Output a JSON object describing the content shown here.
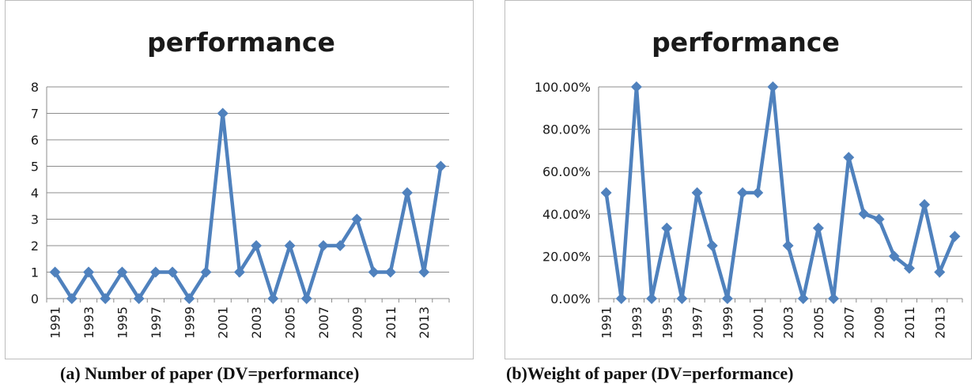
{
  "chart_data": [
    {
      "type": "line",
      "title": "performance",
      "xlabel": "",
      "ylabel": "",
      "x": [
        1991,
        1992,
        1993,
        1994,
        1995,
        1996,
        1997,
        1998,
        1999,
        2000,
        2001,
        2002,
        2003,
        2004,
        2005,
        2006,
        2007,
        2008,
        2009,
        2010,
        2011,
        2012,
        2013,
        2014
      ],
      "x_tick_labels": [
        "1991",
        "1993",
        "1995",
        "1997",
        "1999",
        "2001",
        "2003",
        "2005",
        "2007",
        "2009",
        "2011",
        "2013"
      ],
      "y_tick_labels": [
        "0",
        "1",
        "2",
        "3",
        "4",
        "5",
        "6",
        "7",
        "8"
      ],
      "ylim": [
        0,
        8
      ],
      "grid": true,
      "series": [
        {
          "values": [
            1,
            0,
            1,
            0,
            1,
            0,
            1,
            1,
            0,
            1,
            7,
            1,
            2,
            0,
            2,
            0,
            2,
            2,
            3,
            1,
            1,
            4,
            1,
            5
          ]
        }
      ],
      "caption": "(a)  Number of paper (DV=performance)"
    },
    {
      "type": "line",
      "title": "performance",
      "xlabel": "",
      "ylabel": "",
      "x": [
        1991,
        1992,
        1993,
        1994,
        1995,
        1996,
        1997,
        1998,
        1999,
        2000,
        2001,
        2002,
        2003,
        2004,
        2005,
        2006,
        2007,
        2008,
        2009,
        2010,
        2011,
        2012,
        2013,
        2014
      ],
      "x_tick_labels": [
        "1991",
        "1993",
        "1995",
        "1997",
        "1999",
        "2001",
        "2003",
        "2005",
        "2007",
        "2009",
        "2011",
        "2013"
      ],
      "y_tick_labels": [
        "0.00%",
        "20.00%",
        "40.00%",
        "60.00%",
        "80.00%",
        "100.00%"
      ],
      "ylim": [
        0,
        1
      ],
      "grid": true,
      "series": [
        {
          "values": [
            0.5,
            0,
            1,
            0,
            0.333,
            0,
            0.5,
            0.25,
            0,
            0.5,
            0.5,
            1,
            0.25,
            0,
            0.333,
            0,
            0.667,
            0.4,
            0.375,
            0.2,
            0.143,
            0.444,
            0.125,
            0.294
          ]
        }
      ],
      "caption": "(b)Weight of paper (DV=performance)"
    }
  ],
  "style": {
    "line_color": "#4f81bd",
    "grid_color": "#8c8c8c",
    "axis_color": "#8c8c8c"
  }
}
